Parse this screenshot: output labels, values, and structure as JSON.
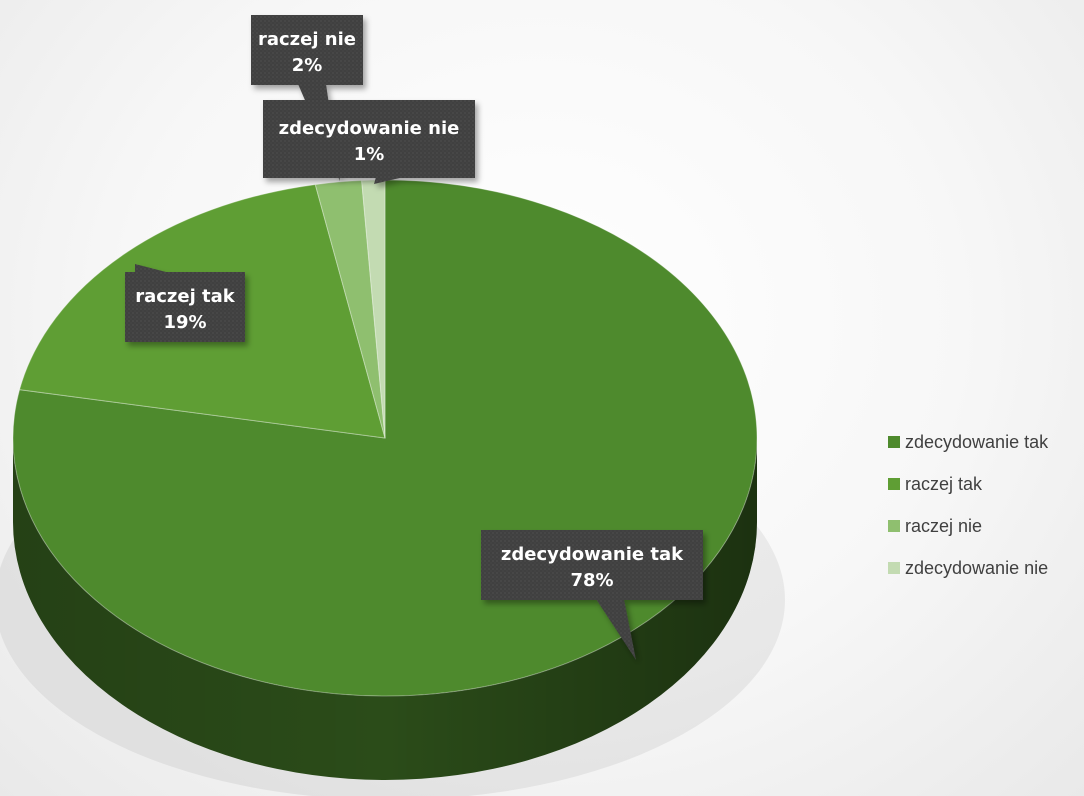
{
  "chart_data": {
    "type": "pie",
    "title": "",
    "three_d": true,
    "legend_position": "right",
    "slices": [
      {
        "label": "zdecydowanie tak",
        "value": 78,
        "value_label": "78%",
        "color": "#4e8a2d"
      },
      {
        "label": "raczej tak",
        "value": 19,
        "value_label": "19%",
        "color": "#5f9e34"
      },
      {
        "label": "raczej nie",
        "value": 2,
        "value_label": "2%",
        "color": "#8fbf6f"
      },
      {
        "label": "zdecydowanie nie",
        "value": 1,
        "value_label": "1%",
        "color": "#c3dbb2"
      }
    ]
  }
}
